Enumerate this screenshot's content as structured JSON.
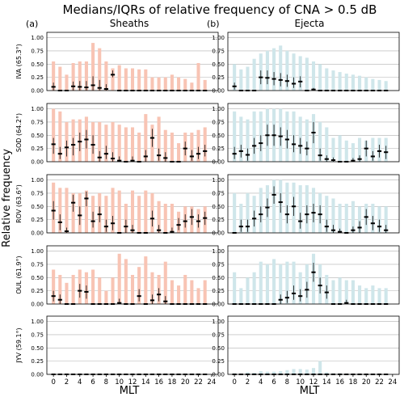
{
  "title": "Medians/IQRs of relative frequency of CNA > 0.5 dB",
  "ylabel": "Relative frequency",
  "xlabel": "MLT",
  "columns": [
    {
      "tag": "(a)",
      "title": "Sheaths",
      "bar_color": "#f8c4b4"
    },
    {
      "tag": "(b)",
      "title": "Ejecta",
      "bar_color": "#cfe6ea"
    }
  ],
  "stations": [
    "IVA (65.3°)",
    "SOD (64.2°)",
    "ROV (63.6°)",
    "OUL (61.9°)",
    "JYV (59.1°)"
  ],
  "x_ticks": [
    "0",
    "2",
    "4",
    "6",
    "8",
    "10",
    "12",
    "14",
    "16",
    "18",
    "20",
    "22",
    "24"
  ],
  "y_ticks": [
    "0.00",
    "0.25",
    "0.50",
    "0.75",
    "1.00"
  ],
  "chart_data": [
    {
      "type": "bar",
      "panel": "(a) Sheaths",
      "station": "IVA (65.3°)",
      "x": [
        0,
        1,
        2,
        3,
        4,
        5,
        6,
        7,
        8,
        9,
        10,
        11,
        12,
        13,
        14,
        15,
        16,
        17,
        18,
        19,
        20,
        21,
        22,
        23
      ],
      "bar_max": [
        0.55,
        0.45,
        0.3,
        0.52,
        0.55,
        0.55,
        0.9,
        0.8,
        0.55,
        0.42,
        0.48,
        0.42,
        0.42,
        0.4,
        0.4,
        0.25,
        0.25,
        0.25,
        0.3,
        0.25,
        0.22,
        0.15,
        0.52,
        0.2
      ],
      "median": [
        0.07,
        0.0,
        0.0,
        0.08,
        0.07,
        0.06,
        0.1,
        0.05,
        0.03,
        0.3,
        0.0,
        0.0,
        0.0,
        0.0,
        0.0,
        0.0,
        0.0,
        0.0,
        0.0,
        0.0,
        0.0,
        0.0,
        0.0,
        0.0
      ],
      "q1": [
        0.0,
        0.0,
        0.0,
        0.0,
        0.0,
        0.0,
        0.0,
        0.0,
        0.0,
        0.25,
        0.0,
        0.0,
        0.0,
        0.0,
        0.0,
        0.0,
        0.0,
        0.0,
        0.0,
        0.0,
        0.0,
        0.0,
        0.0,
        0.0
      ],
      "q3": [
        0.15,
        0.0,
        0.0,
        0.17,
        0.18,
        0.18,
        0.27,
        0.2,
        0.12,
        0.38,
        0.0,
        0.0,
        0.0,
        0.0,
        0.0,
        0.0,
        0.0,
        0.0,
        0.0,
        0.0,
        0.0,
        0.0,
        0.0,
        0.0
      ],
      "ylim": [
        0,
        1.1
      ]
    },
    {
      "type": "bar",
      "panel": "(b) Ejecta",
      "station": "IVA (65.3°)",
      "x": [
        0,
        1,
        2,
        3,
        4,
        5,
        6,
        7,
        8,
        9,
        10,
        11,
        12,
        13,
        14,
        15,
        16,
        17,
        18,
        19,
        20,
        21,
        22,
        23
      ],
      "bar_max": [
        0.5,
        0.4,
        0.45,
        0.6,
        0.7,
        0.75,
        0.8,
        0.85,
        0.75,
        0.7,
        0.65,
        0.62,
        0.55,
        0.5,
        0.42,
        0.38,
        0.35,
        0.32,
        0.3,
        0.28,
        0.25,
        0.22,
        0.2,
        0.18
      ],
      "median": [
        0.08,
        0.0,
        0.0,
        0.0,
        0.25,
        0.24,
        0.22,
        0.2,
        0.18,
        0.13,
        0.17,
        0.0,
        0.02,
        0.0,
        0.0,
        0.0,
        0.0,
        0.0,
        0.0,
        0.0,
        0.0,
        0.0,
        0.0,
        0.0
      ],
      "q1": [
        0.02,
        0.0,
        0.0,
        0.0,
        0.12,
        0.12,
        0.1,
        0.08,
        0.07,
        0.05,
        0.06,
        0.0,
        0.0,
        0.0,
        0.0,
        0.0,
        0.0,
        0.0,
        0.0,
        0.0,
        0.0,
        0.0,
        0.0,
        0.0
      ],
      "q3": [
        0.15,
        0.0,
        0.0,
        0.0,
        0.38,
        0.38,
        0.35,
        0.33,
        0.3,
        0.25,
        0.27,
        0.0,
        0.05,
        0.0,
        0.0,
        0.0,
        0.0,
        0.0,
        0.0,
        0.0,
        0.0,
        0.0,
        0.0,
        0.0
      ],
      "ylim": [
        0,
        1.1
      ]
    },
    {
      "type": "bar",
      "panel": "(a) Sheaths",
      "station": "SOD (64.2°)",
      "x": [
        0,
        1,
        2,
        3,
        4,
        5,
        6,
        7,
        8,
        9,
        10,
        11,
        12,
        13,
        14,
        15,
        16,
        17,
        18,
        19,
        20,
        21,
        22,
        23
      ],
      "bar_max": [
        1.0,
        0.95,
        0.75,
        0.8,
        0.8,
        0.85,
        0.75,
        0.75,
        0.7,
        0.75,
        0.7,
        0.65,
        0.65,
        0.55,
        0.9,
        0.7,
        0.85,
        0.6,
        0.55,
        0.35,
        0.55,
        0.55,
        0.6,
        0.65
      ],
      "median": [
        0.33,
        0.15,
        0.27,
        0.32,
        0.38,
        0.42,
        0.32,
        0.08,
        0.15,
        0.06,
        0.02,
        0.0,
        0.02,
        0.0,
        0.1,
        0.45,
        0.12,
        0.07,
        0.0,
        0.0,
        0.25,
        0.1,
        0.15,
        0.2
      ],
      "q1": [
        0.15,
        0.05,
        0.1,
        0.12,
        0.2,
        0.25,
        0.15,
        0.0,
        0.05,
        0.0,
        0.0,
        0.0,
        0.0,
        0.0,
        0.0,
        0.28,
        0.02,
        0.0,
        0.0,
        0.0,
        0.12,
        0.02,
        0.05,
        0.1
      ],
      "q3": [
        0.45,
        0.28,
        0.4,
        0.45,
        0.55,
        0.6,
        0.5,
        0.2,
        0.3,
        0.18,
        0.1,
        0.0,
        0.1,
        0.0,
        0.22,
        0.62,
        0.25,
        0.18,
        0.0,
        0.0,
        0.38,
        0.22,
        0.28,
        0.32
      ],
      "ylim": [
        0,
        1.1
      ]
    },
    {
      "type": "bar",
      "panel": "(b) Ejecta",
      "station": "SOD (64.2°)",
      "x": [
        0,
        1,
        2,
        3,
        4,
        5,
        6,
        7,
        8,
        9,
        10,
        11,
        12,
        13,
        14,
        15,
        16,
        17,
        18,
        19,
        20,
        21,
        22,
        23
      ],
      "bar_max": [
        0.95,
        0.85,
        0.8,
        0.95,
        0.95,
        1.0,
        1.0,
        1.0,
        0.95,
        0.95,
        0.85,
        0.8,
        0.9,
        0.75,
        0.65,
        0.45,
        0.5,
        0.4,
        0.35,
        0.45,
        0.4,
        0.45,
        0.45,
        0.45
      ],
      "median": [
        0.15,
        0.2,
        0.13,
        0.3,
        0.35,
        0.5,
        0.5,
        0.48,
        0.42,
        0.33,
        0.3,
        0.25,
        0.55,
        0.12,
        0.05,
        0.03,
        0.0,
        0.0,
        0.02,
        0.05,
        0.25,
        0.1,
        0.2,
        0.18
      ],
      "q1": [
        0.05,
        0.08,
        0.02,
        0.15,
        0.2,
        0.3,
        0.3,
        0.3,
        0.25,
        0.18,
        0.15,
        0.12,
        0.35,
        0.02,
        0.0,
        0.0,
        0.0,
        0.0,
        0.0,
        0.0,
        0.1,
        0.02,
        0.08,
        0.05
      ],
      "q3": [
        0.28,
        0.32,
        0.25,
        0.45,
        0.5,
        0.7,
        0.7,
        0.65,
        0.6,
        0.5,
        0.45,
        0.38,
        0.75,
        0.25,
        0.12,
        0.08,
        0.0,
        0.0,
        0.07,
        0.12,
        0.4,
        0.2,
        0.32,
        0.3
      ],
      "ylim": [
        0,
        1.1
      ]
    },
    {
      "type": "bar",
      "panel": "(a) Sheaths",
      "station": "ROV (63.6°)",
      "x": [
        0,
        1,
        2,
        3,
        4,
        5,
        6,
        7,
        8,
        9,
        10,
        11,
        12,
        13,
        14,
        15,
        16,
        17,
        18,
        19,
        20,
        21,
        22,
        23
      ],
      "bar_max": [
        0.95,
        0.85,
        0.85,
        0.75,
        0.75,
        0.8,
        0.7,
        0.75,
        0.7,
        0.85,
        0.8,
        0.55,
        0.8,
        0.7,
        0.8,
        0.75,
        0.6,
        0.55,
        0.55,
        0.4,
        0.5,
        0.5,
        0.45,
        0.5
      ],
      "median": [
        0.42,
        0.2,
        0.03,
        0.57,
        0.33,
        0.65,
        0.22,
        0.35,
        0.12,
        0.18,
        0.0,
        0.12,
        0.05,
        0.0,
        0.0,
        0.27,
        0.05,
        0.0,
        0.02,
        0.15,
        0.22,
        0.3,
        0.22,
        0.28
      ],
      "q1": [
        0.25,
        0.05,
        0.0,
        0.4,
        0.15,
        0.5,
        0.1,
        0.2,
        0.02,
        0.05,
        0.0,
        0.0,
        0.0,
        0.0,
        0.0,
        0.12,
        0.0,
        0.0,
        0.0,
        0.05,
        0.1,
        0.15,
        0.1,
        0.15
      ],
      "q3": [
        0.6,
        0.35,
        0.1,
        0.72,
        0.5,
        0.78,
        0.4,
        0.5,
        0.25,
        0.32,
        0.0,
        0.25,
        0.15,
        0.0,
        0.0,
        0.42,
        0.15,
        0.0,
        0.1,
        0.28,
        0.35,
        0.45,
        0.35,
        0.4
      ],
      "ylim": [
        0,
        1.1
      ]
    },
    {
      "type": "bar",
      "panel": "(b) Ejecta",
      "station": "ROV (63.6°)",
      "x": [
        0,
        1,
        2,
        3,
        4,
        5,
        6,
        7,
        8,
        9,
        10,
        11,
        12,
        13,
        14,
        15,
        16,
        17,
        18,
        19,
        20,
        21,
        22,
        23
      ],
      "bar_max": [
        0.75,
        0.55,
        0.75,
        0.7,
        0.85,
        0.9,
        1.0,
        1.0,
        0.95,
        0.95,
        0.9,
        0.9,
        0.85,
        0.75,
        0.7,
        0.65,
        0.55,
        0.55,
        0.6,
        0.5,
        0.55,
        0.55,
        0.5,
        0.5
      ],
      "median": [
        0.0,
        0.12,
        0.12,
        0.27,
        0.35,
        0.48,
        0.72,
        0.58,
        0.35,
        0.5,
        0.22,
        0.35,
        0.38,
        0.35,
        0.12,
        0.05,
        0.02,
        0.0,
        0.05,
        0.1,
        0.3,
        0.18,
        0.12,
        0.05
      ],
      "q1": [
        0.0,
        0.02,
        0.02,
        0.12,
        0.2,
        0.3,
        0.55,
        0.38,
        0.18,
        0.32,
        0.08,
        0.18,
        0.2,
        0.18,
        0.02,
        0.0,
        0.0,
        0.0,
        0.0,
        0.0,
        0.15,
        0.05,
        0.02,
        0.0
      ],
      "q3": [
        0.0,
        0.25,
        0.25,
        0.42,
        0.5,
        0.65,
        0.88,
        0.75,
        0.52,
        0.68,
        0.38,
        0.52,
        0.55,
        0.52,
        0.25,
        0.15,
        0.08,
        0.0,
        0.12,
        0.22,
        0.45,
        0.32,
        0.25,
        0.15
      ],
      "ylim": [
        0,
        1.1
      ]
    },
    {
      "type": "bar",
      "panel": "(a) Sheaths",
      "station": "OUL (61.9°)",
      "x": [
        0,
        1,
        2,
        3,
        4,
        5,
        6,
        7,
        8,
        9,
        10,
        11,
        12,
        13,
        14,
        15,
        16,
        17,
        18,
        19,
        20,
        21,
        22,
        23
      ],
      "bar_max": [
        0.65,
        0.55,
        0.4,
        0.55,
        0.65,
        0.6,
        0.65,
        0.5,
        0.25,
        0.5,
        0.95,
        0.85,
        0.55,
        0.7,
        0.9,
        0.6,
        0.55,
        0.8,
        0.45,
        0.35,
        0.55,
        0.45,
        0.3,
        0.45
      ],
      "median": [
        0.15,
        0.08,
        0.0,
        0.0,
        0.25,
        0.23,
        0.0,
        0.0,
        0.0,
        0.0,
        0.02,
        0.0,
        0.0,
        0.15,
        0.0,
        0.07,
        0.18,
        0.05,
        0.0,
        0.0,
        0.0,
        0.0,
        0.0,
        0.0
      ],
      "q1": [
        0.05,
        0.0,
        0.0,
        0.0,
        0.12,
        0.1,
        0.0,
        0.0,
        0.0,
        0.0,
        0.0,
        0.0,
        0.0,
        0.05,
        0.0,
        0.0,
        0.05,
        0.0,
        0.0,
        0.0,
        0.0,
        0.0,
        0.0,
        0.0
      ],
      "q3": [
        0.25,
        0.18,
        0.0,
        0.0,
        0.38,
        0.35,
        0.0,
        0.0,
        0.0,
        0.0,
        0.1,
        0.0,
        0.0,
        0.28,
        0.0,
        0.18,
        0.3,
        0.15,
        0.0,
        0.0,
        0.0,
        0.0,
        0.0,
        0.0
      ],
      "ylim": [
        0,
        1.1
      ]
    },
    {
      "type": "bar",
      "panel": "(b) Ejecta",
      "station": "OUL (61.9°)",
      "x": [
        0,
        1,
        2,
        3,
        4,
        5,
        6,
        7,
        8,
        9,
        10,
        11,
        12,
        13,
        14,
        15,
        16,
        17,
        18,
        19,
        20,
        21,
        22,
        23
      ],
      "bar_max": [
        0.6,
        0.3,
        0.5,
        0.6,
        0.8,
        0.75,
        0.85,
        0.75,
        0.8,
        0.8,
        0.6,
        0.75,
        0.95,
        0.75,
        0.55,
        0.45,
        0.5,
        0.45,
        0.45,
        0.35,
        0.3,
        0.35,
        0.3,
        0.3
      ],
      "median": [
        0.0,
        0.0,
        0.0,
        0.0,
        0.0,
        0.0,
        0.0,
        0.08,
        0.12,
        0.2,
        0.15,
        0.27,
        0.6,
        0.35,
        0.22,
        0.0,
        0.0,
        0.02,
        0.0,
        0.0,
        0.0,
        0.0,
        0.0,
        0.0
      ],
      "q1": [
        0.0,
        0.0,
        0.0,
        0.0,
        0.0,
        0.0,
        0.0,
        0.0,
        0.02,
        0.08,
        0.05,
        0.12,
        0.42,
        0.2,
        0.1,
        0.0,
        0.0,
        0.0,
        0.0,
        0.0,
        0.0,
        0.0,
        0.0,
        0.0
      ],
      "q3": [
        0.0,
        0.0,
        0.0,
        0.0,
        0.0,
        0.0,
        0.0,
        0.18,
        0.25,
        0.35,
        0.28,
        0.42,
        0.78,
        0.5,
        0.35,
        0.0,
        0.0,
        0.08,
        0.0,
        0.0,
        0.0,
        0.0,
        0.0,
        0.0
      ],
      "ylim": [
        0,
        1.1
      ]
    },
    {
      "type": "bar",
      "panel": "(a) Sheaths",
      "station": "JYV (59.1°)",
      "x": [
        0,
        1,
        2,
        3,
        4,
        5,
        6,
        7,
        8,
        9,
        10,
        11,
        12,
        13,
        14,
        15,
        16,
        17,
        18,
        19,
        20,
        21,
        22,
        23
      ],
      "bar_max": [
        0.01,
        0.01,
        0.01,
        0.01,
        0.01,
        0.01,
        0.01,
        0.01,
        0.01,
        0.01,
        0.01,
        0.01,
        0.01,
        0.01,
        0.01,
        0.01,
        0.01,
        0.01,
        0.01,
        0.01,
        0.01,
        0.01,
        0.01,
        0.01
      ],
      "median": [
        0,
        0,
        0,
        0,
        0,
        0,
        0,
        0,
        0,
        0,
        0,
        0,
        0,
        0,
        0,
        0,
        0,
        0,
        0,
        0,
        0,
        0,
        0,
        0
      ],
      "q1": [
        0,
        0,
        0,
        0,
        0,
        0,
        0,
        0,
        0,
        0,
        0,
        0,
        0,
        0,
        0,
        0,
        0,
        0,
        0,
        0,
        0,
        0,
        0,
        0
      ],
      "q3": [
        0,
        0,
        0,
        0,
        0,
        0,
        0,
        0,
        0,
        0,
        0,
        0,
        0,
        0,
        0,
        0,
        0,
        0,
        0,
        0,
        0,
        0,
        0,
        0
      ],
      "ylim": [
        0,
        1.1
      ]
    },
    {
      "type": "bar",
      "panel": "(b) Ejecta",
      "station": "JYV (59.1°)",
      "x": [
        0,
        1,
        2,
        3,
        4,
        5,
        6,
        7,
        8,
        9,
        10,
        11,
        12,
        13,
        14,
        15,
        16,
        17,
        18,
        19,
        20,
        21,
        22,
        23
      ],
      "bar_max": [
        0.02,
        0.0,
        0.04,
        0.03,
        0.06,
        0.05,
        0.05,
        0.06,
        0.08,
        0.1,
        0.1,
        0.09,
        0.12,
        0.25,
        0.04,
        0.02,
        0.02,
        0.0,
        0.0,
        0.0,
        0.0,
        0.0,
        0.0,
        0.0
      ],
      "median": [
        0,
        0,
        0,
        0,
        0,
        0,
        0,
        0,
        0,
        0,
        0,
        0,
        0,
        0,
        0,
        0,
        0,
        0,
        0,
        0,
        0,
        0,
        0,
        0
      ],
      "q1": [
        0,
        0,
        0,
        0,
        0,
        0,
        0,
        0,
        0,
        0,
        0,
        0,
        0,
        0,
        0,
        0,
        0,
        0,
        0,
        0,
        0,
        0,
        0,
        0
      ],
      "q3": [
        0,
        0,
        0,
        0,
        0,
        0,
        0,
        0,
        0,
        0,
        0,
        0,
        0,
        0,
        0,
        0,
        0,
        0,
        0,
        0,
        0,
        0,
        0,
        0
      ],
      "ylim": [
        0,
        1.1
      ]
    }
  ]
}
